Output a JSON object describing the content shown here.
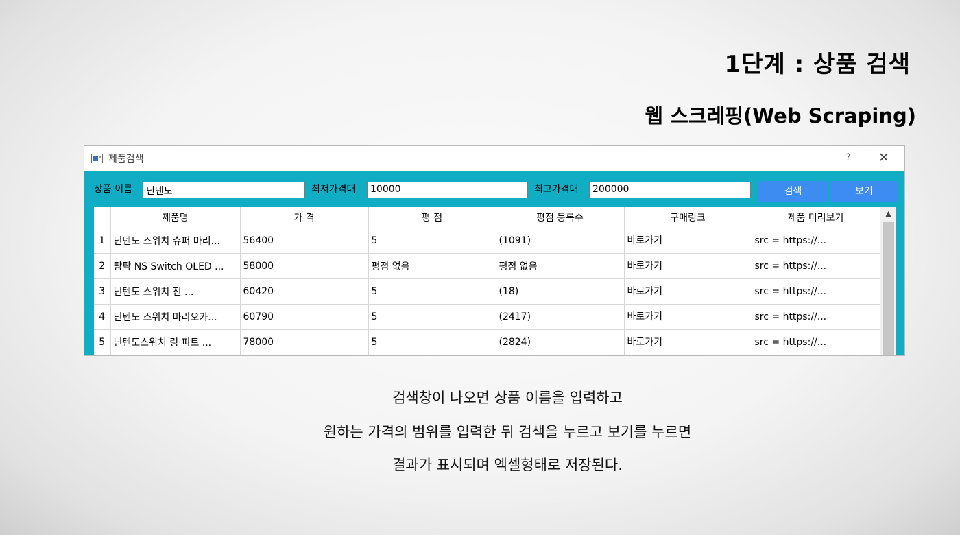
{
  "slide": {
    "title": "1단계 : 상품 검색",
    "subtitle": "웹 스크레핑(Web Scraping)",
    "captions": [
      "검색창이 나오면 상품 이름을 입력하고",
      "원하는 가격의 범위를 입력한 뒤 검색을 누르고 보기를 누르면",
      "결과가 표시되며 엑셀형태로 저장된다."
    ]
  },
  "window": {
    "title": "제품검색",
    "help_label": "?",
    "close_label": "✕"
  },
  "toolbar": {
    "name_label": "상품 이름",
    "name_value": "닌텐도",
    "min_label": "최저가격대",
    "min_value": "10000",
    "max_label": "최고가격대",
    "max_value": "200000",
    "search_label": "검색",
    "view_label": "보기"
  },
  "table": {
    "columns": [
      "제품명",
      "가 격",
      "평 점",
      "평점 등록수",
      "구매링크",
      "제품 미리보기"
    ],
    "rows": [
      {
        "num": "1",
        "name": "닌텐도 스위치 슈퍼 마리...",
        "price": "56400",
        "rating": "5",
        "count": "(1091)",
        "link": "바로가기",
        "preview": "src = https://..."
      },
      {
        "num": "2",
        "name": "탐탁 NS Switch OLED ...",
        "price": "58000",
        "rating": "평점 없음",
        "count": "평점 없음",
        "link": "바로가기",
        "preview": "src = https://..."
      },
      {
        "num": "3",
        "name": "닌텐도 스위치 진 ...",
        "price": "60420",
        "rating": "5",
        "count": "(18)",
        "link": "바로가기",
        "preview": "src = https://..."
      },
      {
        "num": "4",
        "name": "닌텐도 스위치 마리오카...",
        "price": "60790",
        "rating": "5",
        "count": "(2417)",
        "link": "바로가기",
        "preview": "src = https://..."
      },
      {
        "num": "5",
        "name": "닌텐도스위치 링 피트 ...",
        "price": "78000",
        "rating": "5",
        "count": "(2824)",
        "link": "바로가기",
        "preview": "src = https://..."
      }
    ]
  },
  "colors": {
    "accent": "#10adc5",
    "button": "#3d8cf2"
  },
  "icons": {
    "app": "app-window-icon",
    "help": "help-icon",
    "close": "close-icon",
    "scroll_up": "chevron-up-icon"
  }
}
